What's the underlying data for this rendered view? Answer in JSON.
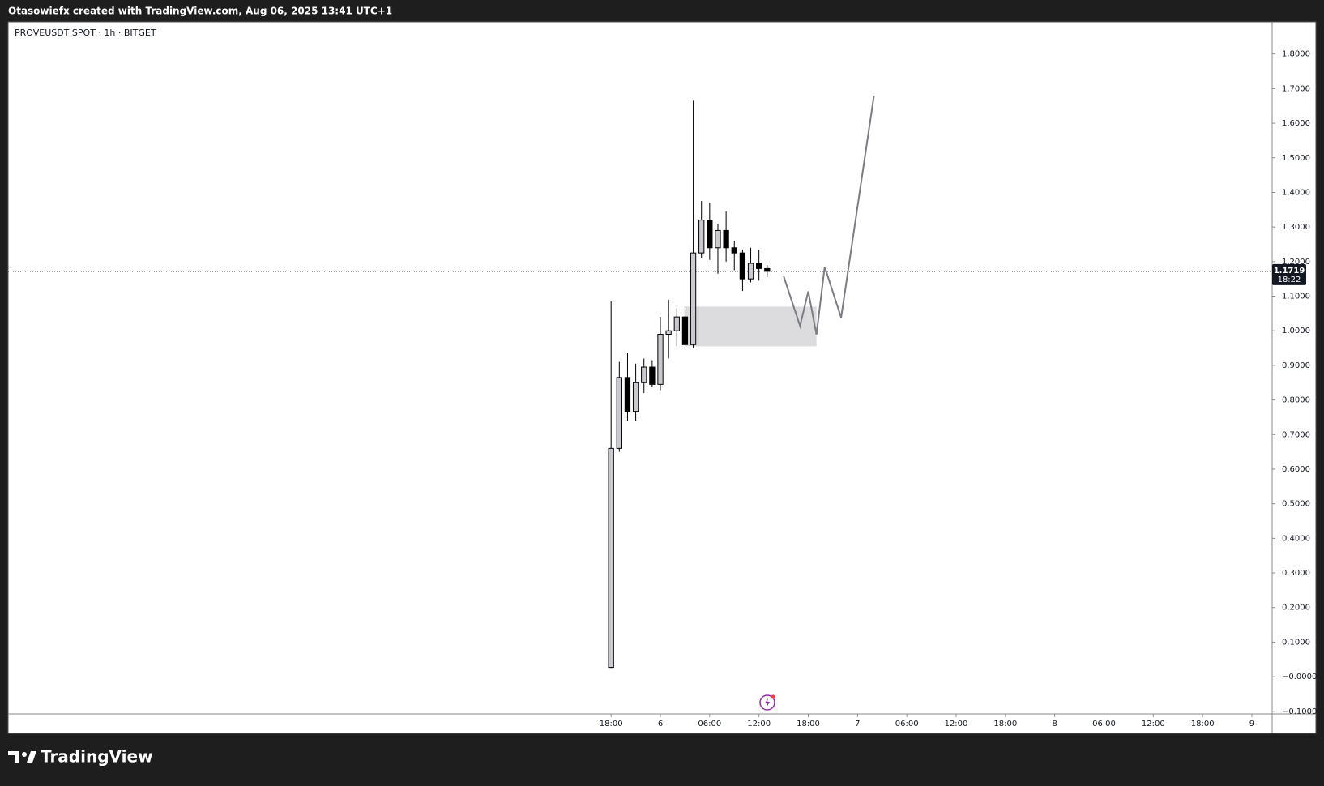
{
  "header": {
    "text": "Otasowiefx created with TradingView.com, Aug 06, 2025 13:41 UTC+1"
  },
  "footer": {
    "logo": "TradingView"
  },
  "chart_data": {
    "type": "candlestick",
    "title": "PROVEUSDT SPOT · 1h · BITGET",
    "x": [
      "2025-08-05T18:00",
      "2025-08-05T19:00",
      "2025-08-05T20:00",
      "2025-08-05T21:00",
      "2025-08-05T22:00",
      "2025-08-05T23:00",
      "2025-08-06T00:00",
      "2025-08-06T01:00",
      "2025-08-06T02:00",
      "2025-08-06T03:00",
      "2025-08-06T04:00",
      "2025-08-06T05:00",
      "2025-08-06T06:00",
      "2025-08-06T07:00",
      "2025-08-06T08:00",
      "2025-08-06T09:00",
      "2025-08-06T10:00",
      "2025-08-06T11:00",
      "2025-08-06T12:00",
      "2025-08-06T13:00"
    ],
    "open": [
      0.027,
      0.66,
      0.865,
      0.767,
      0.85,
      0.895,
      0.845,
      0.99,
      1.0,
      1.04,
      0.96,
      1.225,
      1.32,
      1.24,
      1.29,
      1.24,
      1.225,
      1.15,
      1.195,
      1.18
    ],
    "high": [
      1.085,
      0.91,
      0.935,
      0.905,
      0.92,
      0.915,
      1.04,
      1.09,
      1.065,
      1.07,
      1.665,
      1.375,
      1.37,
      1.31,
      1.345,
      1.26,
      1.235,
      1.24,
      1.235,
      1.19
    ],
    "low": [
      0.025,
      0.65,
      0.74,
      0.74,
      0.82,
      0.838,
      0.828,
      0.92,
      0.955,
      0.95,
      0.95,
      1.21,
      1.205,
      1.165,
      1.2,
      1.175,
      1.115,
      1.14,
      1.145,
      1.155
    ],
    "close": [
      0.66,
      0.865,
      0.767,
      0.85,
      0.895,
      0.845,
      0.99,
      1.0,
      1.04,
      0.96,
      1.225,
      1.32,
      1.24,
      1.29,
      1.24,
      1.225,
      1.15,
      1.195,
      1.18,
      1.1719
    ],
    "up_color": "#c9cacf",
    "down_color": "#000000",
    "xlim": [
      "2025-08-02T16:36",
      "2025-08-09T02:28"
    ],
    "ylim": [
      -0.1075,
      1.893
    ],
    "yticks": [
      {
        "value": -0.1,
        "label": "−0.1000"
      },
      {
        "value": 0,
        "label": "−0.0000"
      },
      {
        "value": 0.1,
        "label": "0.1000"
      },
      {
        "value": 0.2,
        "label": "0.2000"
      },
      {
        "value": 0.3,
        "label": "0.3000"
      },
      {
        "value": 0.4,
        "label": "0.4000"
      },
      {
        "value": 0.5,
        "label": "0.5000"
      },
      {
        "value": 0.6,
        "label": "0.6000"
      },
      {
        "value": 0.7,
        "label": "0.7000"
      },
      {
        "value": 0.8,
        "label": "0.8000"
      },
      {
        "value": 0.9,
        "label": "0.9000"
      },
      {
        "value": 1.0,
        "label": "1.0000"
      },
      {
        "value": 1.1,
        "label": "1.1000"
      },
      {
        "value": 1.2,
        "label": "1.2000"
      },
      {
        "value": 1.3,
        "label": "1.3000"
      },
      {
        "value": 1.4,
        "label": "1.4000"
      },
      {
        "value": 1.5,
        "label": "1.5000"
      },
      {
        "value": 1.6,
        "label": "1.6000"
      },
      {
        "value": 1.7,
        "label": "1.7000"
      },
      {
        "value": 1.8,
        "label": "1.8000"
      }
    ],
    "xticks": [
      {
        "value": "2025-08-05T18:00",
        "label": "18:00"
      },
      {
        "value": "2025-08-06T00:00",
        "label": "6"
      },
      {
        "value": "2025-08-06T06:00",
        "label": "06:00"
      },
      {
        "value": "2025-08-06T12:00",
        "label": "12:00"
      },
      {
        "value": "2025-08-06T18:00",
        "label": "18:00"
      },
      {
        "value": "2025-08-07T00:00",
        "label": "7"
      },
      {
        "value": "2025-08-07T06:00",
        "label": "06:00"
      },
      {
        "value": "2025-08-07T12:00",
        "label": "12:00"
      },
      {
        "value": "2025-08-07T18:00",
        "label": "18:00"
      },
      {
        "value": "2025-08-08T00:00",
        "label": "8"
      },
      {
        "value": "2025-08-08T06:00",
        "label": "06:00"
      },
      {
        "value": "2025-08-08T12:00",
        "label": "12:00"
      },
      {
        "value": "2025-08-08T18:00",
        "label": "18:00"
      },
      {
        "value": "2025-08-09T00:00",
        "label": "9"
      }
    ],
    "last_price": 1.1719,
    "countdown": "18:22",
    "zone": {
      "x": [
        "2025-08-06T03:00",
        "2025-08-06T19:00"
      ],
      "y": [
        0.955,
        1.07
      ],
      "color": "#dcdcdf"
    },
    "projection": {
      "x": [
        "2025-08-06T15:00",
        "2025-08-06T17:00",
        "2025-08-06T18:00",
        "2025-08-06T19:00",
        "2025-08-06T20:00",
        "2025-08-06T22:00",
        "2025-08-07T02:00"
      ],
      "values": [
        1.158,
        1.014,
        1.114,
        0.989,
        1.185,
        1.038,
        1.68
      ],
      "color": "#7b7d85"
    }
  }
}
